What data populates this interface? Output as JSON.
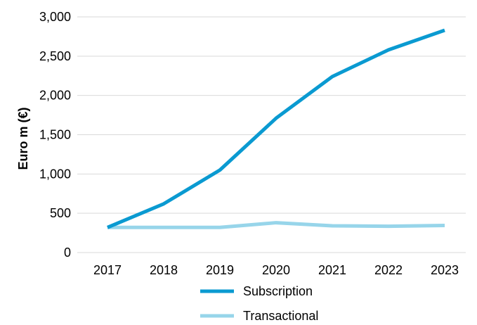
{
  "chart_data": {
    "type": "line",
    "categories": [
      "2017",
      "2018",
      "2019",
      "2020",
      "2021",
      "2022",
      "2023"
    ],
    "series": [
      {
        "name": "Subscription",
        "values": [
          320,
          620,
          1050,
          1710,
          2240,
          2580,
          2830
        ],
        "color": "#0a9ad1"
      },
      {
        "name": "Transactional",
        "values": [
          320,
          320,
          320,
          380,
          340,
          335,
          345
        ],
        "color": "#97d5ea"
      }
    ],
    "xlabel": "",
    "ylabel": "Euro m (€)",
    "ylim": [
      0,
      3000
    ],
    "yticks": [
      0,
      500,
      1000,
      1500,
      2000,
      2500,
      3000
    ],
    "ytick_labels": [
      "0",
      "500",
      "1,000",
      "1,500",
      "2,000",
      "2,500",
      "3,000"
    ],
    "grid": true,
    "grid_color": "#d9d9d9",
    "legend_position": "bottom"
  }
}
